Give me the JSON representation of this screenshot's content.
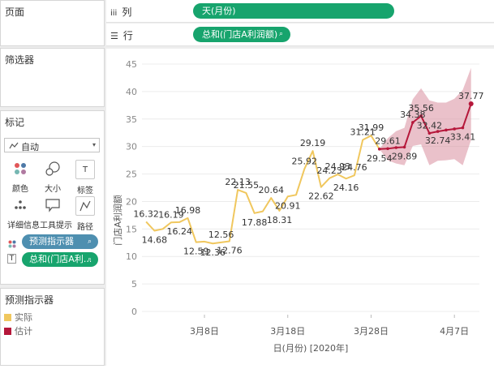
{
  "panels": {
    "pages_title": "页面",
    "filters_title": "筛选器",
    "marks_title": "标记",
    "marks_type": "自动",
    "marks_buttons": [
      {
        "label": "颜色",
        "icon": "color-icon"
      },
      {
        "label": "大小",
        "icon": "size-icon"
      },
      {
        "label": "标签",
        "icon": "label-icon"
      },
      {
        "label": "详细信息",
        "icon": "detail-icon"
      },
      {
        "label": "工具提示",
        "icon": "tooltip-icon"
      },
      {
        "label": "路径",
        "icon": "path-icon"
      }
    ],
    "marks_pills": [
      "预测指示器",
      "总和(门店A利..."
    ],
    "legend_title": "预测指示器",
    "legend_items": [
      {
        "label": "实际",
        "color": "#f0c75e"
      },
      {
        "label": "估计",
        "color": "#b5173a"
      }
    ]
  },
  "shelves": {
    "columns_label": "列",
    "columns_pill": "天(月份)",
    "rows_label": "行",
    "rows_pill": "总和(门店A利润额)"
  },
  "chart_data": {
    "type": "line",
    "xlabel": "日(月份) [2020年]",
    "ylabel": "门店A利润额",
    "ylim": [
      0,
      45
    ],
    "yticks": [
      0,
      5,
      10,
      15,
      20,
      25,
      30,
      35,
      40,
      45
    ],
    "xticks": [
      {
        "label": "3月8日",
        "day": 8
      },
      {
        "label": "3月18日",
        "day": 18
      },
      {
        "label": "3月28日",
        "day": 28
      },
      {
        "label": "4月7日",
        "day": 38
      }
    ],
    "series": [
      {
        "name": "实际",
        "color": "#f0c75e",
        "points": [
          [
            1,
            16.32
          ],
          [
            2,
            14.68
          ],
          [
            3,
            15.0
          ],
          [
            4,
            16.19
          ],
          [
            5,
            16.24
          ],
          [
            6,
            16.98
          ],
          [
            7,
            12.59
          ],
          [
            8,
            12.7
          ],
          [
            9,
            12.36
          ],
          [
            10,
            12.56
          ],
          [
            11,
            12.76
          ],
          [
            12,
            22.13
          ],
          [
            13,
            21.55
          ],
          [
            14,
            17.88
          ],
          [
            15,
            18.2
          ],
          [
            16,
            20.64
          ],
          [
            17,
            18.31
          ],
          [
            18,
            20.91
          ],
          [
            19,
            21.2
          ],
          [
            20,
            25.92
          ],
          [
            21,
            29.19
          ],
          [
            22,
            22.62
          ],
          [
            23,
            24.23
          ],
          [
            24,
            24.93
          ],
          [
            25,
            24.16
          ],
          [
            26,
            24.76
          ],
          [
            27,
            31.21
          ],
          [
            28,
            31.99
          ],
          [
            29,
            29.54
          ]
        ],
        "labels": [
          {
            "day": 1,
            "text": "16.32",
            "pos": "above"
          },
          {
            "day": 2,
            "text": "14.68",
            "pos": "below"
          },
          {
            "day": 4,
            "text": "16.19",
            "pos": "above"
          },
          {
            "day": 5,
            "text": "16.24",
            "pos": "below"
          },
          {
            "day": 6,
            "text": "16.98",
            "pos": "above"
          },
          {
            "day": 7,
            "text": "12.59",
            "pos": "below"
          },
          {
            "day": 9,
            "text": "12.36",
            "pos": "below"
          },
          {
            "day": 10,
            "text": "12.56",
            "pos": "above"
          },
          {
            "day": 11,
            "text": "12.76",
            "pos": "below"
          },
          {
            "day": 12,
            "text": "22.13",
            "pos": "above"
          },
          {
            "day": 13,
            "text": "21.55",
            "pos": "above"
          },
          {
            "day": 14,
            "text": "17.88",
            "pos": "below"
          },
          {
            "day": 16,
            "text": "20.64",
            "pos": "above"
          },
          {
            "day": 17,
            "text": "18.31",
            "pos": "below"
          },
          {
            "day": 18,
            "text": "20.91",
            "pos": "below"
          },
          {
            "day": 20,
            "text": "25.92",
            "pos": "above"
          },
          {
            "day": 21,
            "text": "29.19",
            "pos": "above"
          },
          {
            "day": 22,
            "text": "22.62",
            "pos": "below"
          },
          {
            "day": 23,
            "text": "24.23",
            "pos": "above"
          },
          {
            "day": 24,
            "text": "24.93",
            "pos": "above"
          },
          {
            "day": 25,
            "text": "24.16",
            "pos": "below"
          },
          {
            "day": 26,
            "text": "24.76",
            "pos": "above"
          },
          {
            "day": 27,
            "text": "31.21",
            "pos": "above"
          },
          {
            "day": 28,
            "text": "31.99",
            "pos": "above"
          },
          {
            "day": 29,
            "text": "29.54",
            "pos": "below"
          }
        ]
      },
      {
        "name": "估计",
        "color": "#b5173a",
        "points": [
          [
            29,
            29.54
          ],
          [
            30,
            29.61
          ],
          [
            31,
            29.8
          ],
          [
            32,
            29.89
          ],
          [
            33,
            34.38
          ],
          [
            34,
            35.56
          ],
          [
            35,
            32.42
          ],
          [
            36,
            32.74
          ],
          [
            37,
            33.0
          ],
          [
            38,
            33.2
          ],
          [
            39,
            33.41
          ],
          [
            40,
            37.77
          ]
        ],
        "band_upper": [
          [
            29,
            29.54
          ],
          [
            30,
            31.5
          ],
          [
            31,
            32.8
          ],
          [
            32,
            33.4
          ],
          [
            33,
            38.6
          ],
          [
            34,
            40.6
          ],
          [
            35,
            38.4
          ],
          [
            36,
            38.0
          ],
          [
            37,
            38.0
          ],
          [
            38,
            38.7
          ],
          [
            39,
            40.3
          ],
          [
            40,
            44.3
          ]
        ],
        "band_lower": [
          [
            29,
            29.54
          ],
          [
            30,
            27.5
          ],
          [
            31,
            26.9
          ],
          [
            32,
            26.6
          ],
          [
            33,
            30.1
          ],
          [
            34,
            30.4
          ],
          [
            35,
            26.6
          ],
          [
            36,
            27.4
          ],
          [
            37,
            27.5
          ],
          [
            38,
            27.7
          ],
          [
            39,
            26.6
          ],
          [
            40,
            31.2
          ]
        ],
        "labels": [
          {
            "day": 30,
            "text": "29.61",
            "pos": "above"
          },
          {
            "day": 32,
            "text": "29.89",
            "pos": "below"
          },
          {
            "day": 33,
            "text": "34.38",
            "pos": "above"
          },
          {
            "day": 34,
            "text": "35.56",
            "pos": "above"
          },
          {
            "day": 35,
            "text": "32.42",
            "pos": "above"
          },
          {
            "day": 36,
            "text": "32.74",
            "pos": "below"
          },
          {
            "day": 39,
            "text": "33.41",
            "pos": "below"
          },
          {
            "day": 40,
            "text": "37.77",
            "pos": "above"
          }
        ]
      }
    ]
  }
}
